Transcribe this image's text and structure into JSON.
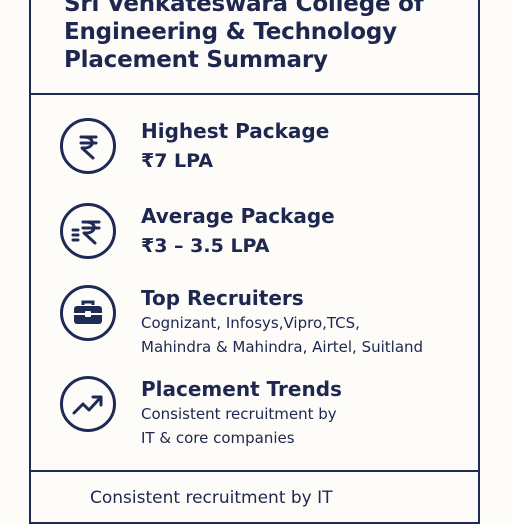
{
  "header": {
    "title_lines": [
      "Sri Venkateswara College of",
      "Engineering & Technology",
      "Placement Summary"
    ]
  },
  "items": [
    {
      "title": "Highest Package",
      "value": "₹7 LPA",
      "icon": "rupee-icon"
    },
    {
      "title": "Average Package",
      "value": "₹3 – 3.5 LPA",
      "icon": "rupee-lines-icon"
    },
    {
      "title": "Top Recruiters",
      "desc_lines": [
        "Cognizant, Infosys,Vipro,TCS,",
        "Mahindra & Mahindra, Airtel, Suitland"
      ],
      "icon": "briefcase-icon"
    },
    {
      "title": "Placement Trends",
      "desc_lines": [
        "Consistent recruitment by",
        "IT & core companies"
      ],
      "icon": "trend-up-icon"
    }
  ],
  "footer": {
    "text": "Consistent recruitment by IT"
  },
  "colors": {
    "ink": "#1d2750",
    "border": "#1f2a55",
    "background": "#fdfcf8"
  }
}
